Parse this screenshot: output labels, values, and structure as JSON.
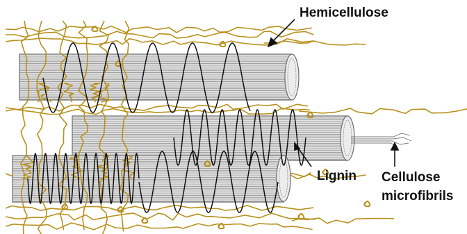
{
  "labels": {
    "hemicellulose": "Hemicellulose",
    "lignin": "Lignin",
    "cellulose_line1": "Cellulose",
    "cellulose_line2": "microfibrils"
  },
  "colors": {
    "hemicellulose": "#b8901c",
    "lignin": "#111111",
    "fibril_fill": "#e2e2e2",
    "fibril_stroke": "#6a6a6a",
    "arrow": "#111111"
  }
}
